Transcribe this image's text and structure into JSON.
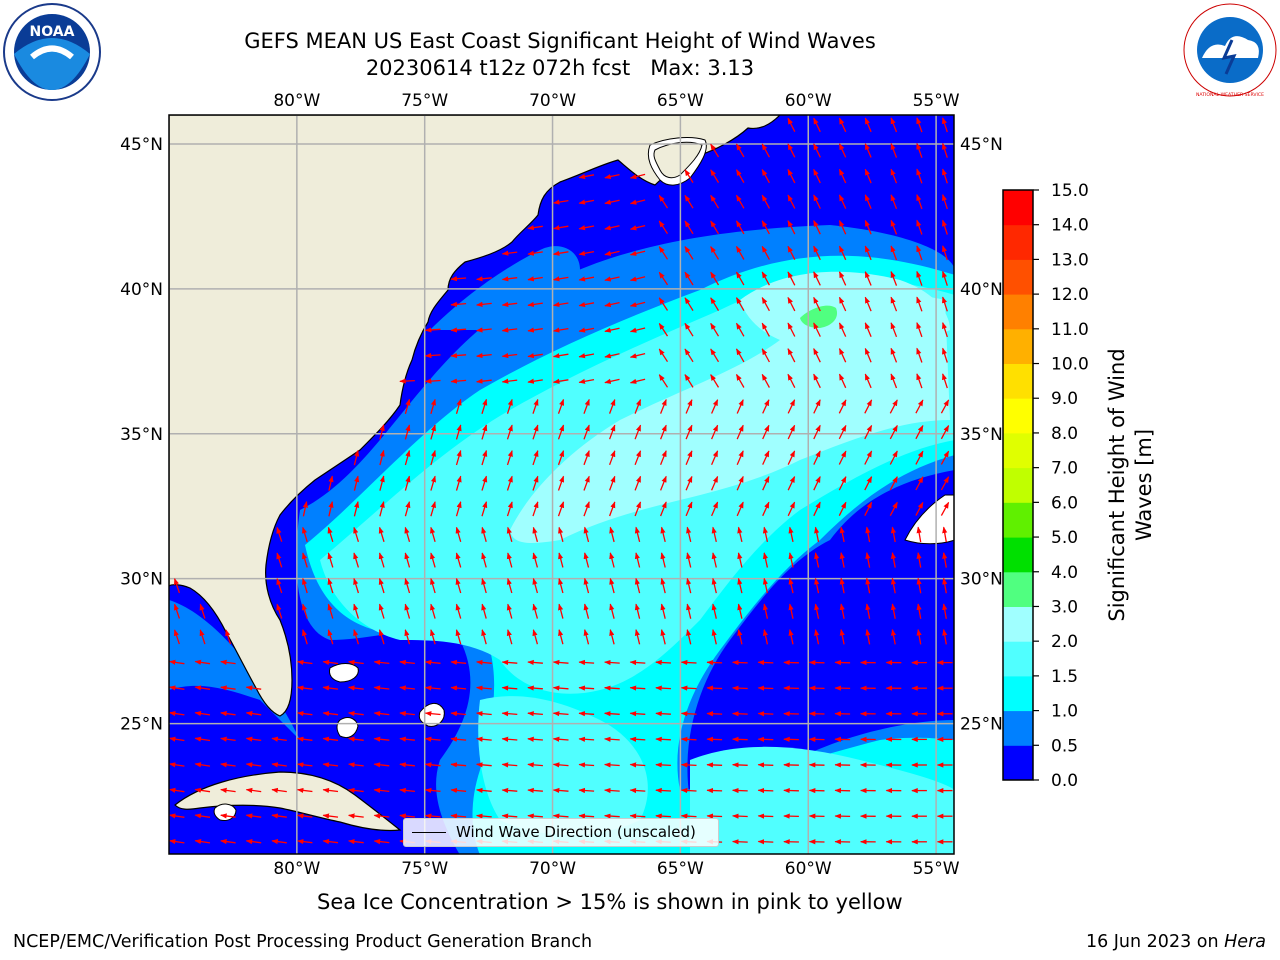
{
  "title": {
    "line1": "GEFS MEAN US East Coast Significant Height of Wind Waves",
    "line2": "20230614 t12z 072h fcst   Max: 3.13"
  },
  "logos": {
    "left": "NOAA",
    "right": "NATIONAL WEATHER SERVICE"
  },
  "map": {
    "lon_ticks": [
      "80°W",
      "75°W",
      "70°W",
      "65°W",
      "60°W",
      "55°W"
    ],
    "lat_ticks": [
      "45°N",
      "40°N",
      "35°N",
      "30°N",
      "25°N"
    ],
    "lon_range": [
      -85,
      -54.3
    ],
    "lat_range": [
      20.5,
      46
    ],
    "colors": {
      "land": "#efedda",
      "grid": "#b0b0b0",
      "arrow": "#ff0000",
      "coast": "#000000"
    }
  },
  "legend": {
    "label": "Wind Wave Direction (unscaled)"
  },
  "colorbar": {
    "label_line1": "Significant Height of Wind",
    "label_line2": "Waves [m]",
    "ticks": [
      "0.0",
      "0.5",
      "1.0",
      "1.5",
      "2.0",
      "3.0",
      "4.0",
      "5.0",
      "6.0",
      "7.0",
      "8.0",
      "9.0",
      "10.0",
      "11.0",
      "12.0",
      "13.0",
      "14.0",
      "15.0"
    ],
    "colors": [
      "#0000ff",
      "#0080ff",
      "#00ffff",
      "#50ffff",
      "#a0ffff",
      "#50ff80",
      "#00e000",
      "#60f000",
      "#c0ff00",
      "#e0ff00",
      "#ffff00",
      "#ffe000",
      "#ffb000",
      "#ff8000",
      "#ff5000",
      "#ff2800",
      "#ff0000"
    ]
  },
  "ice_note": "Sea Ice Concentration > 15% is shown in pink to yellow",
  "footer": {
    "left": "NCEP/EMC/Verification Post Processing Product Generation Branch",
    "right_date": "16 Jun 2023 on ",
    "right_machine": "Hera"
  }
}
